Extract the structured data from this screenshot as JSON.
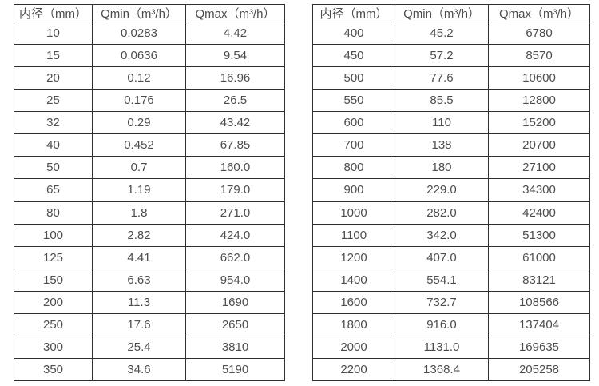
{
  "page": {
    "background_color": "#ffffff",
    "text_color": "#4d4d4d",
    "border_color": "#2f2f2f"
  },
  "tables": [
    {
      "name": "flow-rate-table-small-diameters",
      "headers": [
        "内径（mm）",
        "Qmin（m³/h）",
        "Qmax（m³/h）"
      ],
      "rows": [
        [
          "10",
          "0.0283",
          "4.42"
        ],
        [
          "15",
          "0.0636",
          "9.54"
        ],
        [
          "20",
          "0.12",
          "16.96"
        ],
        [
          "25",
          "0.176",
          "26.5"
        ],
        [
          "32",
          "0.29",
          "43.42"
        ],
        [
          "40",
          "0.452",
          "67.85"
        ],
        [
          "50",
          "0.7",
          "160.0"
        ],
        [
          "65",
          "1.19",
          "179.0"
        ],
        [
          "80",
          "1.8",
          "271.0"
        ],
        [
          "100",
          "2.82",
          "424.0"
        ],
        [
          "125",
          "4.41",
          "662.0"
        ],
        [
          "150",
          "6.63",
          "954.0"
        ],
        [
          "200",
          "11.3",
          "1690"
        ],
        [
          "250",
          "17.6",
          "2650"
        ],
        [
          "300",
          "25.4",
          "3810"
        ],
        [
          "350",
          "34.6",
          "5190"
        ]
      ]
    },
    {
      "name": "flow-rate-table-large-diameters",
      "headers": [
        "内径（mm）",
        "Qmin（m³/h）",
        "Qmax（m³/h）"
      ],
      "rows": [
        [
          "400",
          "45.2",
          "6780"
        ],
        [
          "450",
          "57.2",
          "8570"
        ],
        [
          "500",
          "77.6",
          "10600"
        ],
        [
          "550",
          "85.5",
          "12800"
        ],
        [
          "600",
          "110",
          "15200"
        ],
        [
          "700",
          "138",
          "20700"
        ],
        [
          "800",
          "180",
          "27100"
        ],
        [
          "900",
          "229.0",
          "34300"
        ],
        [
          "1000",
          "282.0",
          "42400"
        ],
        [
          "1100",
          "342.0",
          "51300"
        ],
        [
          "1200",
          "407.0",
          "61000"
        ],
        [
          "1400",
          "554.1",
          "83121"
        ],
        [
          "1600",
          "732.7",
          "108566"
        ],
        [
          "1800",
          "916.0",
          "137404"
        ],
        [
          "2000",
          "1131.0",
          "169635"
        ],
        [
          "2200",
          "1368.4",
          "205258"
        ]
      ]
    }
  ]
}
